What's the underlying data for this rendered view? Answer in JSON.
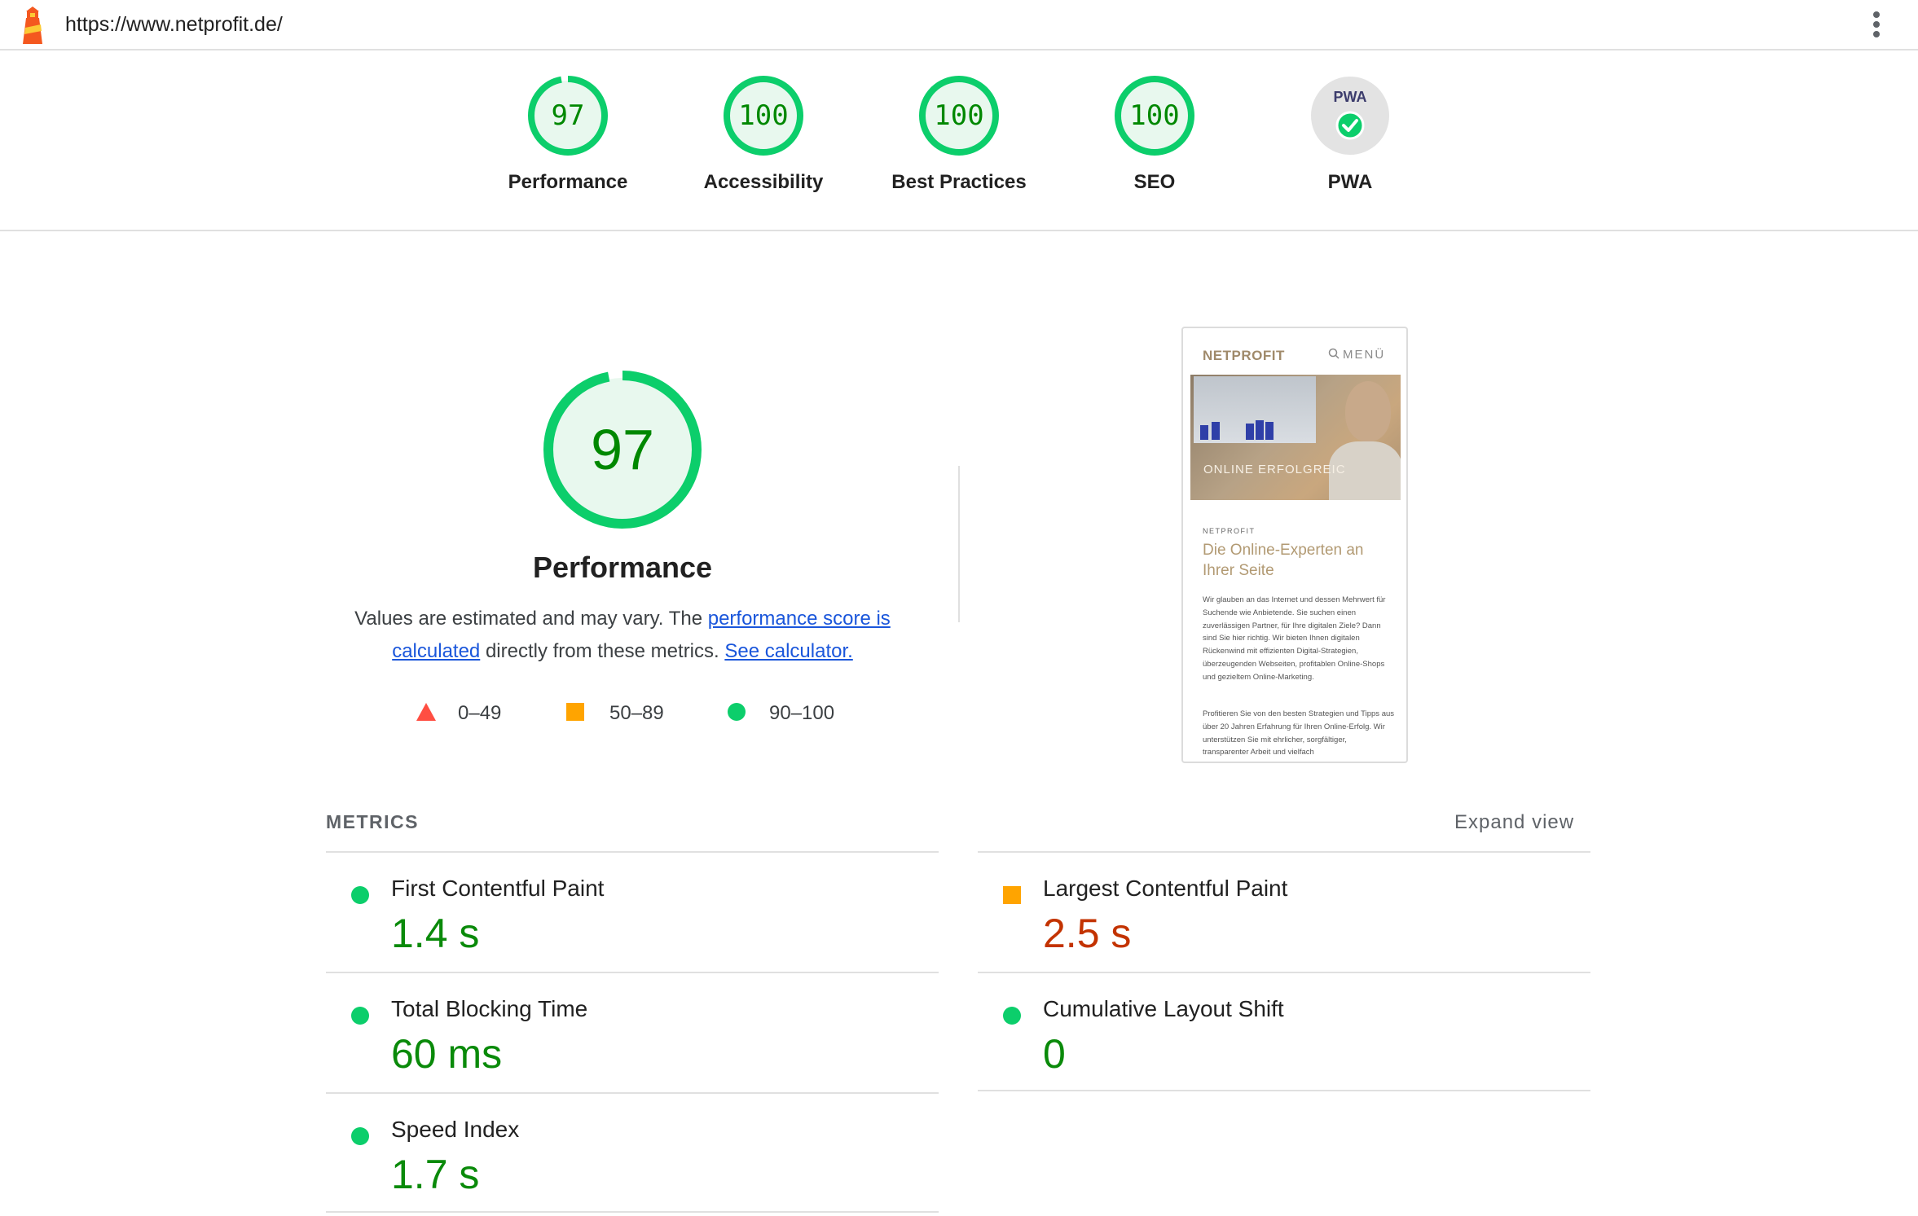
{
  "browser": {
    "url": "https://www.netprofit.de/"
  },
  "colors": {
    "pass": "#0cce6b",
    "pass_text": "#008800",
    "average": "#ffa400",
    "fail": "#ff4e42",
    "link": "#1a56db"
  },
  "summary": [
    {
      "id": "performance",
      "score": "97",
      "label": "Performance",
      "fraction": 0.97
    },
    {
      "id": "accessibility",
      "score": "100",
      "label": "Accessibility",
      "fraction": 1.0
    },
    {
      "id": "best-practices",
      "score": "100",
      "label": "Best Practices",
      "fraction": 1.0
    },
    {
      "id": "seo",
      "score": "100",
      "label": "SEO",
      "fraction": 1.0
    },
    {
      "id": "pwa",
      "badge": "PWA",
      "label": "PWA",
      "icon": "check-icon"
    }
  ],
  "performance": {
    "score": "97",
    "fraction": 0.97,
    "title": "Performance",
    "desc_prefix": "Values are estimated and may vary. The ",
    "desc_link1": "performance score is calculated",
    "desc_middle": " directly from these metrics. ",
    "desc_link2": "See calculator."
  },
  "legend": [
    {
      "shape": "triangle",
      "range": "0–49",
      "color": "#ff4e42"
    },
    {
      "shape": "square",
      "range": "50–89",
      "color": "#ffa400"
    },
    {
      "shape": "circle",
      "range": "90–100",
      "color": "#0cce6b"
    }
  ],
  "thumbnail": {
    "brand": "NETPROFIT",
    "menu": "MENÜ",
    "hero_text": "ONLINE ERFOLGREIC",
    "kicker": "NETPROFIT",
    "heading": "Die Online-Experten an Ihrer Seite",
    "paragraph1": "Wir glauben an das Internet und dessen Mehrwert für Suchende wie Anbietende. Sie suchen einen zuverlässigen Partner, für Ihre digitalen Ziele? Dann sind Sie hier richtig. Wir bieten Ihnen digitalen Rückenwind mit effizienten Digital-Strategien, überzeugenden Webseiten, profitablen Online-Shops und gezieltem Online-Marketing.",
    "paragraph2": "Profitieren Sie von den besten Strategien und Tipps aus über 20 Jahren Erfahrung für Ihren Online-Erfolg. Wir unterstützen Sie mit ehrlicher, sorgfältiger, transparenter Arbeit und vielfach"
  },
  "metrics": {
    "title": "METRICS",
    "expand_label": "Expand view",
    "items": [
      {
        "name": "First Contentful Paint",
        "value": "1.4 s",
        "status": "pass"
      },
      {
        "name": "Largest Contentful Paint",
        "value": "2.5 s",
        "status": "average"
      },
      {
        "name": "Total Blocking Time",
        "value": "60 ms",
        "status": "pass"
      },
      {
        "name": "Cumulative Layout Shift",
        "value": "0",
        "status": "pass"
      },
      {
        "name": "Speed Index",
        "value": "1.7 s",
        "status": "pass"
      }
    ]
  }
}
